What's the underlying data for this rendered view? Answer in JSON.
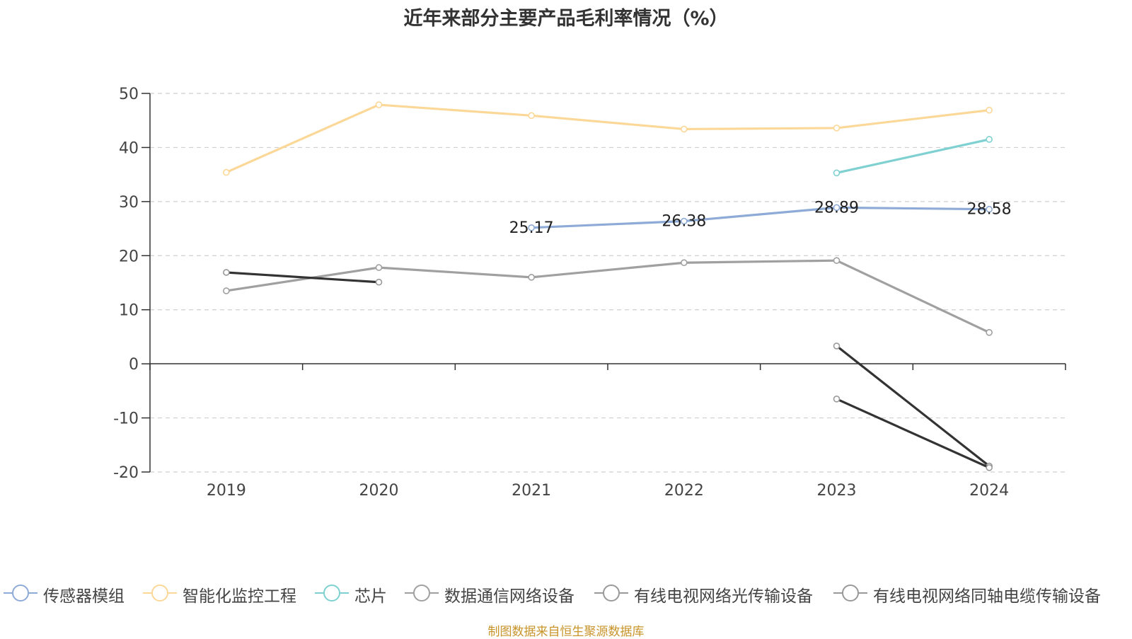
{
  "chart_data": {
    "type": "line",
    "title": "近年来部分主要产品毛利率情况（%）",
    "categories": [
      "2019",
      "2020",
      "2021",
      "2022",
      "2023",
      "2024"
    ],
    "ylim": [
      -20,
      50
    ],
    "yticks": [
      50,
      40,
      30,
      20,
      10,
      0,
      -10,
      -20
    ],
    "grid": true,
    "legend_position": "bottom",
    "series": [
      {
        "name": "传感器模组",
        "color": "#8eaad6",
        "values": [
          null,
          null,
          25.17,
          26.38,
          28.89,
          28.58
        ],
        "show_labels": true
      },
      {
        "name": "智能化监控工程",
        "color": "#fbd898",
        "values": [
          35.4,
          47.9,
          45.9,
          43.4,
          43.6,
          46.9
        ],
        "show_labels": false
      },
      {
        "name": "芯片",
        "color": "#7fd1d1",
        "values": [
          null,
          null,
          null,
          null,
          35.3,
          41.5
        ],
        "show_labels": false
      },
      {
        "name": "数据通信网络设备",
        "color": "#a0a0a0",
        "values": [
          13.5,
          17.8,
          16.0,
          18.7,
          19.1,
          5.8
        ],
        "show_labels": false
      },
      {
        "name": "有线电视网络光传输设备",
        "color": "#333333",
        "values": [
          16.9,
          15.1,
          null,
          null,
          3.3,
          -18.9
        ],
        "show_labels": false
      },
      {
        "name": "有线电视网络同轴电缆传输设备",
        "color": "#333333",
        "values": [
          null,
          null,
          null,
          null,
          -6.5,
          -19.2
        ],
        "show_labels": false
      }
    ]
  },
  "legend_icons": [
    "circle-line-icon"
  ],
  "source_note": "制图数据来自恒生聚源数据库"
}
